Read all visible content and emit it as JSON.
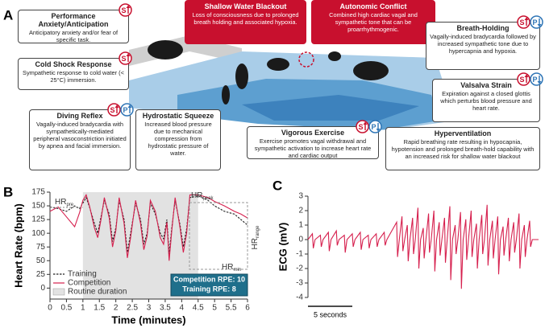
{
  "panel_labels": [
    "A",
    "B",
    "C"
  ],
  "panel_a": {
    "boxes": [
      {
        "title": "Performance Anxiety/Anticipation",
        "text": "Anticipatory anxiety and/or fear of specific task.",
        "badges": [
          {
            "letter": "S",
            "dir": "up"
          }
        ]
      },
      {
        "title": "Cold Shock Response",
        "text": "Sympathetic response to cold water (< 25°C) immersion.",
        "badges": [
          {
            "letter": "S",
            "dir": "up"
          }
        ]
      },
      {
        "title": "Diving Reflex",
        "text": "Vagally-induced bradycardia with sympathetically-mediated peripheral vasoconstriction initiated by apnea and facial immersion.",
        "badges": [
          {
            "letter": "S",
            "dir": "up"
          },
          {
            "letter": "P",
            "dir": "up"
          }
        ]
      },
      {
        "title": "Hydrostatic Squeeze",
        "text": "Increased blood pressure due to mechanical compression from hydrostatic pressure of water.",
        "badges": []
      },
      {
        "title": "Shallow Water Blackout",
        "text": "Loss of consciousness due to prolonged breath holding and associated hypoxia.",
        "badges": [],
        "style": "red"
      },
      {
        "title": "Autonomic Conflict",
        "text": "Combined high cardiac vagal and sympathetic tone that can be proarrhythmogenic.",
        "badges": [],
        "style": "red"
      },
      {
        "title": "Breath-Holding",
        "text": "Vagally-induced bradycardia followed by increased sympathetic tone due to hypercapnia and hypoxia.",
        "badges": [
          {
            "letter": "S",
            "dir": "up"
          },
          {
            "letter": "P",
            "dir": "down"
          }
        ]
      },
      {
        "title": "Valsalva Strain",
        "text": "Expiration against a closed glottis which perturbs blood pressure and heart rate.",
        "badges": [
          {
            "letter": "S",
            "dir": "up"
          },
          {
            "letter": "P",
            "dir": "down"
          }
        ]
      },
      {
        "title": "Vigorous Exercise",
        "text": "Exercise promotes vagal withdrawal and sympathetic activation to increase heart rate and cardiac output",
        "badges": [
          {
            "letter": "S",
            "dir": "up"
          },
          {
            "letter": "P",
            "dir": "down"
          }
        ]
      },
      {
        "title": "Hyperventilation",
        "text": "Rapid breathing rate resulting in hypocapnia, hypotension and prolonged breath-hold capability with an increased risk for shallow water blackout",
        "badges": []
      }
    ]
  },
  "chart_data": [
    {
      "type": "line",
      "x_label": "Time (minutes)",
      "y_label": "Heart Rate (bpm)",
      "x": [
        0,
        0.25,
        0.5,
        0.75,
        0.9,
        1.0,
        1.1,
        1.2,
        1.35,
        1.45,
        1.55,
        1.65,
        1.8,
        1.9,
        2.0,
        2.1,
        2.25,
        2.35,
        2.45,
        2.6,
        2.75,
        2.85,
        2.95,
        3.05,
        3.2,
        3.35,
        3.45,
        3.55,
        3.62,
        3.7,
        3.8,
        3.95,
        4.05,
        4.15,
        4.25,
        4.5,
        4.8,
        5.0,
        5.3,
        5.6,
        5.8,
        6.0
      ],
      "series": [
        {
          "name": "Training",
          "color": "#222222",
          "line_style": "dashed",
          "values": [
            148,
            145,
            140,
            150,
            145,
            155,
            165,
            148,
            118,
            100,
            130,
            160,
            135,
            85,
            110,
            160,
            125,
            65,
            100,
            155,
            125,
            80,
            100,
            155,
            135,
            100,
            90,
            125,
            62,
            110,
            160,
            115,
            75,
            108,
            165,
            168,
            160,
            150,
            140,
            135,
            125,
            115
          ]
        },
        {
          "name": "Competition",
          "color": "#d6204e",
          "line_style": "solid",
          "values": [
            140,
            148,
            130,
            112,
            138,
            160,
            170,
            150,
            110,
            92,
            125,
            165,
            128,
            75,
            105,
            165,
            118,
            55,
            92,
            160,
            118,
            70,
            95,
            160,
            140,
            92,
            80,
            120,
            50,
            105,
            165,
            110,
            65,
            100,
            170,
            170,
            165,
            158,
            150,
            140,
            135,
            128
          ]
        }
      ],
      "shaded": {
        "name": "Routine duration",
        "x": [
          1,
          4.5
        ],
        "color": "#e2e2e2"
      },
      "xlim": [
        0,
        6
      ],
      "xticks": [
        0,
        0.5,
        1,
        1.5,
        2,
        2.5,
        3,
        3.5,
        4,
        4.5,
        5,
        5.5,
        6
      ],
      "ylim": [
        -20,
        175
      ],
      "yticks": [
        0,
        25,
        50,
        75,
        100,
        125,
        150,
        175
      ],
      "legend": "lower left",
      "annotations": [
        {
          "text": "HR",
          "sub": "pre"
        },
        {
          "text": "HR",
          "sub": "peak"
        },
        {
          "text": "HR",
          "sub": "min"
        },
        {
          "text": "HR",
          "sub": "range"
        }
      ],
      "note": [
        "Competition RPE: 10",
        "Training RPE: 8"
      ]
    },
    {
      "type": "line",
      "y_label": "ECG (mV)",
      "x": [
        0,
        0.5,
        0.6,
        0.8,
        1.4,
        1.5,
        1.7,
        2.3,
        2.4,
        2.6,
        3.2,
        3.3,
        3.5,
        4.1,
        4.2,
        4.4,
        5.0,
        5.1,
        5.3,
        5.9,
        6.0,
        6.2,
        6.8,
        6.9,
        7.1,
        7.7,
        7.8,
        8.0,
        8.6,
        8.7,
        8.9,
        10.0,
        10.1,
        10.3,
        10.6,
        10.7,
        10.9,
        11.2,
        11.3,
        11.5,
        11.8,
        11.9,
        12.1,
        12.4,
        12.5,
        12.7,
        13.0,
        13.1,
        13.3,
        13.6,
        13.7,
        13.9,
        14.2,
        14.3,
        14.5,
        14.8,
        14.9,
        15.1,
        15.4,
        15.5,
        15.7,
        16.0,
        16.1,
        16.3,
        16.6,
        16.7,
        16.9,
        17.2,
        17.3,
        17.5,
        17.8,
        17.9,
        18.1,
        18.4,
        18.5,
        18.7,
        19.0,
        19.1,
        19.3,
        19.6,
        19.7,
        19.9,
        20.2,
        20.3,
        20.5,
        20.8,
        20.9,
        21.1,
        21.4,
        21.5,
        21.7,
        22.0,
        22.1,
        22.3,
        22.6,
        22.7,
        22.9,
        23.2,
        23.3,
        23.5,
        23.8,
        23.9,
        24.1,
        24.4,
        24.5,
        24.7,
        25.0,
        25.1,
        25.3,
        26.0
      ],
      "series": [
        {
          "name": "ECG",
          "color": "#d6204e",
          "line_style": "solid",
          "values": [
            0,
            0.4,
            -0.6,
            0,
            0.3,
            -0.5,
            0,
            0.5,
            -0.8,
            0,
            0.6,
            -0.4,
            0,
            0.3,
            -0.9,
            0,
            0.4,
            -0.5,
            0,
            0.5,
            -0.7,
            0,
            0.3,
            -0.6,
            0,
            0.4,
            -0.5,
            0,
            0.5,
            -0.4,
            0,
            1.2,
            -1.2,
            0,
            1.6,
            -0.8,
            0,
            1.0,
            -1.5,
            0,
            1.5,
            -1.0,
            0,
            2.2,
            -2.0,
            0,
            0.8,
            -1.3,
            0,
            1.8,
            -0.9,
            0,
            2.0,
            -2.2,
            0,
            1.2,
            -1.1,
            0,
            1.5,
            -1.6,
            0,
            2.3,
            -2.8,
            0,
            1.0,
            -1.0,
            0,
            1.9,
            -3.4,
            0,
            1.4,
            -1.4,
            0,
            2.0,
            -1.2,
            0,
            1.1,
            -2.0,
            0,
            1.7,
            -1.0,
            0,
            2.4,
            -1.8,
            0,
            1.3,
            -1.3,
            0,
            1.6,
            -2.4,
            0,
            0.9,
            -1.1,
            0,
            1.5,
            -1.5,
            0,
            1.2,
            -0.9,
            0,
            1.8,
            -2.0,
            0,
            1.0,
            -1.2,
            0,
            1.3,
            -0.5,
            0,
            0
          ]
        }
      ],
      "xlim": [
        0,
        26
      ],
      "ylim": [
        -4,
        3
      ],
      "yticks": [
        -4,
        -3,
        -2,
        -1,
        0,
        1,
        2,
        3
      ],
      "scale_bar": {
        "value": 5,
        "label": "5 seconds"
      }
    }
  ]
}
